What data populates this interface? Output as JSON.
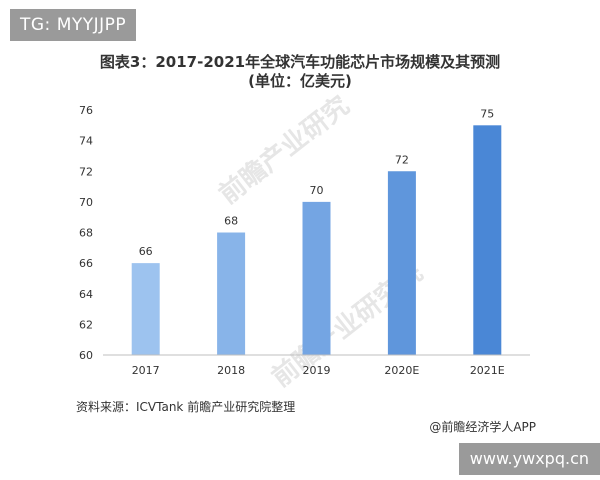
{
  "tags": {
    "top": "TG: MYYJJPP",
    "bottom": "www.ywxpq.cn"
  },
  "title_line1": "图表3：2017-2021年全球汽车功能芯片市场规模及其预测",
  "title_line2": "(单位：亿美元)",
  "source": "资料来源：ICVTank 前瞻产业研究院整理",
  "credit": "@前瞻经济学人APP",
  "watermarks": [
    "前瞻产业研究",
    "前瞻产业研究院"
  ],
  "colors": {
    "bar_start": "#9dc3ef",
    "bar_end": "#4a87d6",
    "axis": "#bfbfbf",
    "text": "#333333"
  },
  "chart_data": {
    "type": "bar",
    "categories": [
      "2017",
      "2018",
      "2019",
      "2020E",
      "2021E"
    ],
    "values": [
      66,
      68,
      70,
      72,
      75
    ],
    "ylim": [
      60,
      76
    ],
    "yticks": [
      60,
      62,
      64,
      66,
      68,
      70,
      72,
      74,
      76
    ],
    "grid": false,
    "data_labels": true
  }
}
